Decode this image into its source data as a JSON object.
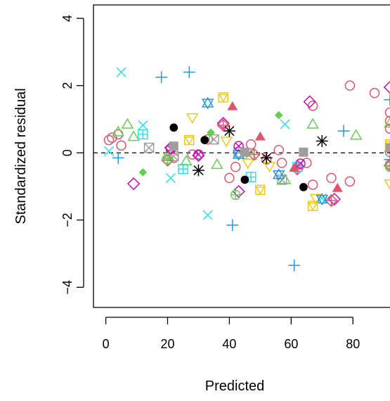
{
  "chart_data": {
    "type": "scatter",
    "title": "",
    "xlabel": "Predicted",
    "ylabel": "Standardized residual",
    "xlim": [
      -4,
      92
    ],
    "ylim": [
      -4.6,
      4.4
    ],
    "xticks": [
      0,
      20,
      40,
      60,
      80
    ],
    "yticks": [
      -4,
      -2,
      0,
      2,
      4
    ],
    "xtick_labels": [
      "0",
      "20",
      "40",
      "60",
      "80"
    ],
    "ytick_labels": [
      "−4",
      "−2",
      "0",
      "2",
      "4"
    ],
    "reference_line": {
      "y": 0,
      "style": "dashed"
    },
    "grid": false,
    "legend": "none",
    "series": [
      {
        "marker": "circle-open",
        "color": "#DF536B",
        "points": [
          [
            1,
            0.38
          ],
          [
            2,
            0.45
          ],
          [
            4,
            0.55
          ],
          [
            5,
            0.22
          ],
          [
            22,
            -0.15
          ],
          [
            28,
            -0.05
          ],
          [
            33,
            0.4
          ],
          [
            40,
            -0.75
          ],
          [
            42,
            -0.42
          ],
          [
            47,
            0.25
          ],
          [
            52,
            -0.2
          ],
          [
            56,
            0.08
          ],
          [
            57,
            -0.3
          ],
          [
            65,
            -0.3
          ],
          [
            67,
            1.4
          ],
          [
            67,
            -0.95
          ],
          [
            73,
            -0.75
          ],
          [
            79,
            -0.85
          ],
          [
            79,
            2.0
          ],
          [
            87,
            1.78
          ],
          [
            92,
            1.2
          ],
          [
            92,
            0.95
          ],
          [
            92,
            0.72
          ],
          [
            92,
            0.02
          ],
          [
            92,
            -0.35
          ]
        ]
      },
      {
        "marker": "triangle-open",
        "color": "#61D04F",
        "points": [
          [
            4,
            0.62
          ],
          [
            7,
            0.85
          ],
          [
            9,
            0.48
          ],
          [
            20,
            -0.05
          ],
          [
            26,
            -0.25
          ],
          [
            36,
            -0.35
          ],
          [
            47,
            -0.08
          ],
          [
            58,
            -0.8
          ],
          [
            67,
            0.85
          ],
          [
            81,
            0.52
          ],
          [
            92,
            0.88
          ],
          [
            92,
            0.15
          ]
        ]
      },
      {
        "marker": "plus",
        "color": "#2297E6",
        "points": [
          [
            4,
            -0.15
          ],
          [
            18,
            2.25
          ],
          [
            27,
            2.4
          ],
          [
            41,
            -2.15
          ],
          [
            61,
            -3.35
          ],
          [
            77,
            0.65
          ],
          [
            92,
            1.58
          ],
          [
            92,
            -0.2
          ]
        ]
      },
      {
        "marker": "x",
        "color": "#28E2E5",
        "points": [
          [
            1,
            0.05
          ],
          [
            5,
            2.4
          ],
          [
            12,
            0.82
          ],
          [
            21,
            -0.75
          ],
          [
            33,
            -1.85
          ],
          [
            58,
            0.85
          ],
          [
            70,
            -1.35
          ]
        ]
      },
      {
        "marker": "diamond-open",
        "color": "#CD0BBC",
        "points": [
          [
            9,
            -0.92
          ],
          [
            21,
            0.15
          ],
          [
            30,
            -0.08
          ],
          [
            38,
            0.88
          ],
          [
            43,
            -1.15
          ],
          [
            66,
            1.52
          ],
          [
            74,
            -1.38
          ],
          [
            92,
            1.95
          ]
        ]
      },
      {
        "marker": "triangle-down-open",
        "color": "#F5C710",
        "points": [
          [
            28,
            1.05
          ],
          [
            39,
            0.35
          ],
          [
            46,
            -0.3
          ],
          [
            53,
            -0.4
          ],
          [
            68,
            -1.35
          ],
          [
            92,
            -0.92
          ]
        ]
      },
      {
        "marker": "x-box",
        "color": "#9E9E9E",
        "points": [
          [
            14,
            0.15
          ],
          [
            22,
            -0.1
          ],
          [
            35,
            0.4
          ],
          [
            43,
            0.02
          ],
          [
            57,
            -0.8
          ]
        ]
      },
      {
        "marker": "asterisk",
        "color": "#000000",
        "points": [
          [
            30,
            -0.52
          ],
          [
            40,
            0.65
          ],
          [
            52,
            -0.15
          ],
          [
            70,
            0.35
          ]
        ]
      },
      {
        "marker": "diamond-plus",
        "color": "#DF536B",
        "points": [
          [
            20,
            -0.22
          ],
          [
            38,
            0.82
          ],
          [
            48,
            -0.05
          ],
          [
            62,
            -0.48
          ],
          [
            73,
            -1.42
          ],
          [
            92,
            -0.38
          ]
        ]
      },
      {
        "marker": "circle-plus",
        "color": "#61D04F",
        "points": [
          [
            20,
            -0.18
          ],
          [
            42,
            -1.25
          ],
          [
            92,
            -0.42
          ]
        ]
      },
      {
        "marker": "star-of-david",
        "color": "#2297E6",
        "points": [
          [
            33,
            1.48
          ],
          [
            43,
            -0.05
          ],
          [
            56,
            -0.65
          ],
          [
            70,
            -1.38
          ]
        ]
      },
      {
        "marker": "square-plus",
        "color": "#28E2E5",
        "points": [
          [
            12,
            0.55
          ],
          [
            25,
            -0.48
          ],
          [
            47,
            -0.72
          ],
          [
            62,
            -0.42
          ]
        ]
      },
      {
        "marker": "circle-x",
        "color": "#CD0BBC",
        "points": [
          [
            21,
            0.12
          ],
          [
            30,
            -0.05
          ],
          [
            43,
            0.2
          ],
          [
            63,
            -0.32
          ]
        ]
      },
      {
        "marker": "square-x",
        "color": "#F5C710",
        "points": [
          [
            27,
            0.38
          ],
          [
            38,
            1.65
          ],
          [
            50,
            -1.1
          ],
          [
            67,
            -1.58
          ],
          [
            92,
            0.25
          ]
        ]
      },
      {
        "marker": "square-filled",
        "color": "#9E9E9E",
        "points": [
          [
            22,
            0.2
          ],
          [
            45,
            0.02
          ],
          [
            64,
            0.02
          ],
          [
            92,
            0.15
          ]
        ]
      },
      {
        "marker": "circle-filled",
        "color": "#000000",
        "points": [
          [
            22,
            0.75
          ],
          [
            32,
            0.38
          ],
          [
            45,
            -0.8
          ],
          [
            64,
            -1.02
          ]
        ]
      },
      {
        "marker": "triangle-filled",
        "color": "#DF536B",
        "points": [
          [
            41,
            1.38
          ],
          [
            50,
            0.48
          ],
          [
            61,
            -0.45
          ],
          [
            75,
            -1.05
          ]
        ]
      },
      {
        "marker": "diamond-filled",
        "color": "#61D04F",
        "points": [
          [
            12,
            -0.58
          ],
          [
            34,
            0.6
          ],
          [
            56,
            1.12
          ]
        ]
      }
    ]
  }
}
